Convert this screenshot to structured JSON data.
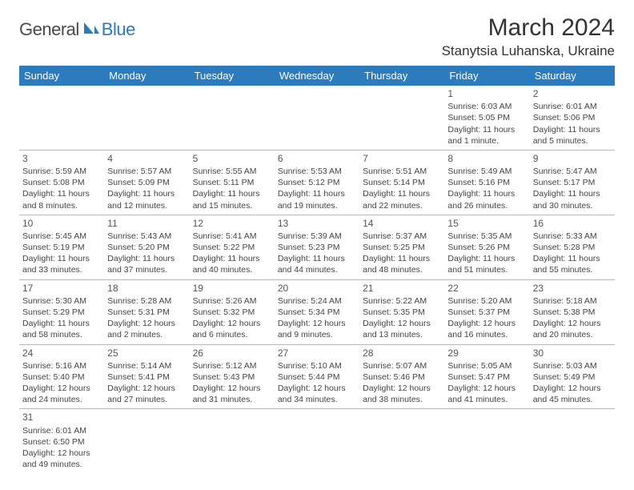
{
  "logo": {
    "general": "General",
    "blue": "Blue"
  },
  "title": "March 2024",
  "location": "Stanytsia Luhanska, Ukraine",
  "colors": {
    "header_bg": "#2b7bbd",
    "header_text": "#ffffff",
    "body_text": "#444444",
    "border": "#b8b8b8",
    "logo_gray": "#4a4a4a",
    "logo_blue": "#2b7bbd"
  },
  "days_of_week": [
    "Sunday",
    "Monday",
    "Tuesday",
    "Wednesday",
    "Thursday",
    "Friday",
    "Saturday"
  ],
  "weeks": [
    [
      null,
      null,
      null,
      null,
      null,
      {
        "n": "1",
        "sr": "Sunrise: 6:03 AM",
        "ss": "Sunset: 5:05 PM",
        "d1": "Daylight: 11 hours",
        "d2": "and 1 minute."
      },
      {
        "n": "2",
        "sr": "Sunrise: 6:01 AM",
        "ss": "Sunset: 5:06 PM",
        "d1": "Daylight: 11 hours",
        "d2": "and 5 minutes."
      }
    ],
    [
      {
        "n": "3",
        "sr": "Sunrise: 5:59 AM",
        "ss": "Sunset: 5:08 PM",
        "d1": "Daylight: 11 hours",
        "d2": "and 8 minutes."
      },
      {
        "n": "4",
        "sr": "Sunrise: 5:57 AM",
        "ss": "Sunset: 5:09 PM",
        "d1": "Daylight: 11 hours",
        "d2": "and 12 minutes."
      },
      {
        "n": "5",
        "sr": "Sunrise: 5:55 AM",
        "ss": "Sunset: 5:11 PM",
        "d1": "Daylight: 11 hours",
        "d2": "and 15 minutes."
      },
      {
        "n": "6",
        "sr": "Sunrise: 5:53 AM",
        "ss": "Sunset: 5:12 PM",
        "d1": "Daylight: 11 hours",
        "d2": "and 19 minutes."
      },
      {
        "n": "7",
        "sr": "Sunrise: 5:51 AM",
        "ss": "Sunset: 5:14 PM",
        "d1": "Daylight: 11 hours",
        "d2": "and 22 minutes."
      },
      {
        "n": "8",
        "sr": "Sunrise: 5:49 AM",
        "ss": "Sunset: 5:16 PM",
        "d1": "Daylight: 11 hours",
        "d2": "and 26 minutes."
      },
      {
        "n": "9",
        "sr": "Sunrise: 5:47 AM",
        "ss": "Sunset: 5:17 PM",
        "d1": "Daylight: 11 hours",
        "d2": "and 30 minutes."
      }
    ],
    [
      {
        "n": "10",
        "sr": "Sunrise: 5:45 AM",
        "ss": "Sunset: 5:19 PM",
        "d1": "Daylight: 11 hours",
        "d2": "and 33 minutes."
      },
      {
        "n": "11",
        "sr": "Sunrise: 5:43 AM",
        "ss": "Sunset: 5:20 PM",
        "d1": "Daylight: 11 hours",
        "d2": "and 37 minutes."
      },
      {
        "n": "12",
        "sr": "Sunrise: 5:41 AM",
        "ss": "Sunset: 5:22 PM",
        "d1": "Daylight: 11 hours",
        "d2": "and 40 minutes."
      },
      {
        "n": "13",
        "sr": "Sunrise: 5:39 AM",
        "ss": "Sunset: 5:23 PM",
        "d1": "Daylight: 11 hours",
        "d2": "and 44 minutes."
      },
      {
        "n": "14",
        "sr": "Sunrise: 5:37 AM",
        "ss": "Sunset: 5:25 PM",
        "d1": "Daylight: 11 hours",
        "d2": "and 48 minutes."
      },
      {
        "n": "15",
        "sr": "Sunrise: 5:35 AM",
        "ss": "Sunset: 5:26 PM",
        "d1": "Daylight: 11 hours",
        "d2": "and 51 minutes."
      },
      {
        "n": "16",
        "sr": "Sunrise: 5:33 AM",
        "ss": "Sunset: 5:28 PM",
        "d1": "Daylight: 11 hours",
        "d2": "and 55 minutes."
      }
    ],
    [
      {
        "n": "17",
        "sr": "Sunrise: 5:30 AM",
        "ss": "Sunset: 5:29 PM",
        "d1": "Daylight: 11 hours",
        "d2": "and 58 minutes."
      },
      {
        "n": "18",
        "sr": "Sunrise: 5:28 AM",
        "ss": "Sunset: 5:31 PM",
        "d1": "Daylight: 12 hours",
        "d2": "and 2 minutes."
      },
      {
        "n": "19",
        "sr": "Sunrise: 5:26 AM",
        "ss": "Sunset: 5:32 PM",
        "d1": "Daylight: 12 hours",
        "d2": "and 6 minutes."
      },
      {
        "n": "20",
        "sr": "Sunrise: 5:24 AM",
        "ss": "Sunset: 5:34 PM",
        "d1": "Daylight: 12 hours",
        "d2": "and 9 minutes."
      },
      {
        "n": "21",
        "sr": "Sunrise: 5:22 AM",
        "ss": "Sunset: 5:35 PM",
        "d1": "Daylight: 12 hours",
        "d2": "and 13 minutes."
      },
      {
        "n": "22",
        "sr": "Sunrise: 5:20 AM",
        "ss": "Sunset: 5:37 PM",
        "d1": "Daylight: 12 hours",
        "d2": "and 16 minutes."
      },
      {
        "n": "23",
        "sr": "Sunrise: 5:18 AM",
        "ss": "Sunset: 5:38 PM",
        "d1": "Daylight: 12 hours",
        "d2": "and 20 minutes."
      }
    ],
    [
      {
        "n": "24",
        "sr": "Sunrise: 5:16 AM",
        "ss": "Sunset: 5:40 PM",
        "d1": "Daylight: 12 hours",
        "d2": "and 24 minutes."
      },
      {
        "n": "25",
        "sr": "Sunrise: 5:14 AM",
        "ss": "Sunset: 5:41 PM",
        "d1": "Daylight: 12 hours",
        "d2": "and 27 minutes."
      },
      {
        "n": "26",
        "sr": "Sunrise: 5:12 AM",
        "ss": "Sunset: 5:43 PM",
        "d1": "Daylight: 12 hours",
        "d2": "and 31 minutes."
      },
      {
        "n": "27",
        "sr": "Sunrise: 5:10 AM",
        "ss": "Sunset: 5:44 PM",
        "d1": "Daylight: 12 hours",
        "d2": "and 34 minutes."
      },
      {
        "n": "28",
        "sr": "Sunrise: 5:07 AM",
        "ss": "Sunset: 5:46 PM",
        "d1": "Daylight: 12 hours",
        "d2": "and 38 minutes."
      },
      {
        "n": "29",
        "sr": "Sunrise: 5:05 AM",
        "ss": "Sunset: 5:47 PM",
        "d1": "Daylight: 12 hours",
        "d2": "and 41 minutes."
      },
      {
        "n": "30",
        "sr": "Sunrise: 5:03 AM",
        "ss": "Sunset: 5:49 PM",
        "d1": "Daylight: 12 hours",
        "d2": "and 45 minutes."
      }
    ],
    [
      {
        "n": "31",
        "sr": "Sunrise: 6:01 AM",
        "ss": "Sunset: 6:50 PM",
        "d1": "Daylight: 12 hours",
        "d2": "and 49 minutes."
      },
      null,
      null,
      null,
      null,
      null,
      null
    ]
  ]
}
